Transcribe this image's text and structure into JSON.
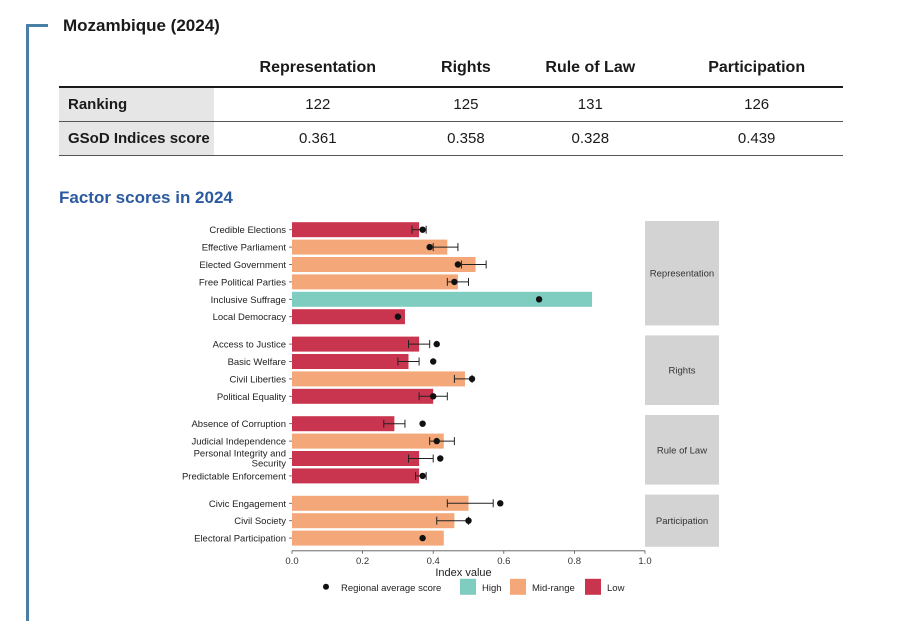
{
  "country_title": "Mozambique (2024)",
  "table": {
    "columns": [
      "Representation",
      "Rights",
      "Rule of Law",
      "Participation"
    ],
    "rows": [
      {
        "label": "Ranking",
        "values": [
          "122",
          "125",
          "131",
          "126"
        ]
      },
      {
        "label": "GSoD Indices score",
        "values": [
          "0.361",
          "0.358",
          "0.328",
          "0.439"
        ]
      }
    ]
  },
  "section_title": "Factor scores in 2024",
  "colors": {
    "High": "#7ecdc0",
    "Mid-range": "#f4a87a",
    "Low": "#c9354f",
    "accent": "#4a7fa5",
    "title": "#2b5aa0",
    "facet": "#d3d3d3"
  },
  "chart_data": {
    "type": "bar",
    "orientation": "horizontal",
    "xlabel": "Index value",
    "xlim": [
      0,
      1
    ],
    "xticks": [
      "0.0",
      "0.2",
      "0.4",
      "0.6",
      "0.8",
      "1.0"
    ],
    "groups": [
      {
        "name": "Representation",
        "factors": [
          {
            "label": "Credible Elections",
            "value": 0.36,
            "level": "Low",
            "err": [
              0.34,
              0.38
            ],
            "regional": 0.37
          },
          {
            "label": "Effective Parliament",
            "value": 0.44,
            "level": "Mid-range",
            "err": [
              0.4,
              0.47
            ],
            "regional": 0.39
          },
          {
            "label": "Elected Government",
            "value": 0.52,
            "level": "Mid-range",
            "err": [
              0.48,
              0.55
            ],
            "regional": 0.47
          },
          {
            "label": "Free Political Parties",
            "value": 0.47,
            "level": "Mid-range",
            "err": [
              0.44,
              0.5
            ],
            "regional": 0.46
          },
          {
            "label": "Inclusive Suffrage",
            "value": 0.85,
            "level": "High",
            "err": null,
            "regional": 0.7
          },
          {
            "label": "Local Democracy",
            "value": 0.32,
            "level": "Low",
            "err": null,
            "regional": 0.3
          }
        ]
      },
      {
        "name": "Rights",
        "factors": [
          {
            "label": "Access to Justice",
            "value": 0.36,
            "level": "Low",
            "err": [
              0.33,
              0.39
            ],
            "regional": 0.41
          },
          {
            "label": "Basic Welfare",
            "value": 0.33,
            "level": "Low",
            "err": [
              0.3,
              0.36
            ],
            "regional": 0.4
          },
          {
            "label": "Civil Liberties",
            "value": 0.49,
            "level": "Mid-range",
            "err": [
              0.46,
              0.51
            ],
            "regional": 0.51
          },
          {
            "label": "Political Equality",
            "value": 0.4,
            "level": "Low",
            "err": [
              0.36,
              0.44
            ],
            "regional": 0.4
          }
        ]
      },
      {
        "name": "Rule of Law",
        "factors": [
          {
            "label": "Absence of Corruption",
            "value": 0.29,
            "level": "Low",
            "err": [
              0.26,
              0.32
            ],
            "regional": 0.37
          },
          {
            "label": "Judicial Independence",
            "value": 0.43,
            "level": "Mid-range",
            "err": [
              0.39,
              0.46
            ],
            "regional": 0.41
          },
          {
            "label": "Personal Integrity and Security",
            "value": 0.36,
            "level": "Low",
            "err": [
              0.33,
              0.4
            ],
            "regional": 0.42
          },
          {
            "label": "Predictable Enforcement",
            "value": 0.36,
            "level": "Low",
            "err": [
              0.35,
              0.38
            ],
            "regional": 0.37
          }
        ]
      },
      {
        "name": "Participation",
        "factors": [
          {
            "label": "Civic Engagement",
            "value": 0.5,
            "level": "Mid-range",
            "err": [
              0.44,
              0.57
            ],
            "regional": 0.59
          },
          {
            "label": "Civil Society",
            "value": 0.46,
            "level": "Mid-range",
            "err": [
              0.41,
              0.5
            ],
            "regional": 0.5
          },
          {
            "label": "Electoral Participation",
            "value": 0.43,
            "level": "Mid-range",
            "err": null,
            "regional": 0.37
          }
        ]
      }
    ],
    "legend": [
      {
        "label": "Regional average score",
        "kind": "dot"
      },
      {
        "label": "High",
        "kind": "swatch"
      },
      {
        "label": "Mid-range",
        "kind": "swatch"
      },
      {
        "label": "Low",
        "kind": "swatch"
      }
    ],
    "legend_position": "bottom"
  }
}
